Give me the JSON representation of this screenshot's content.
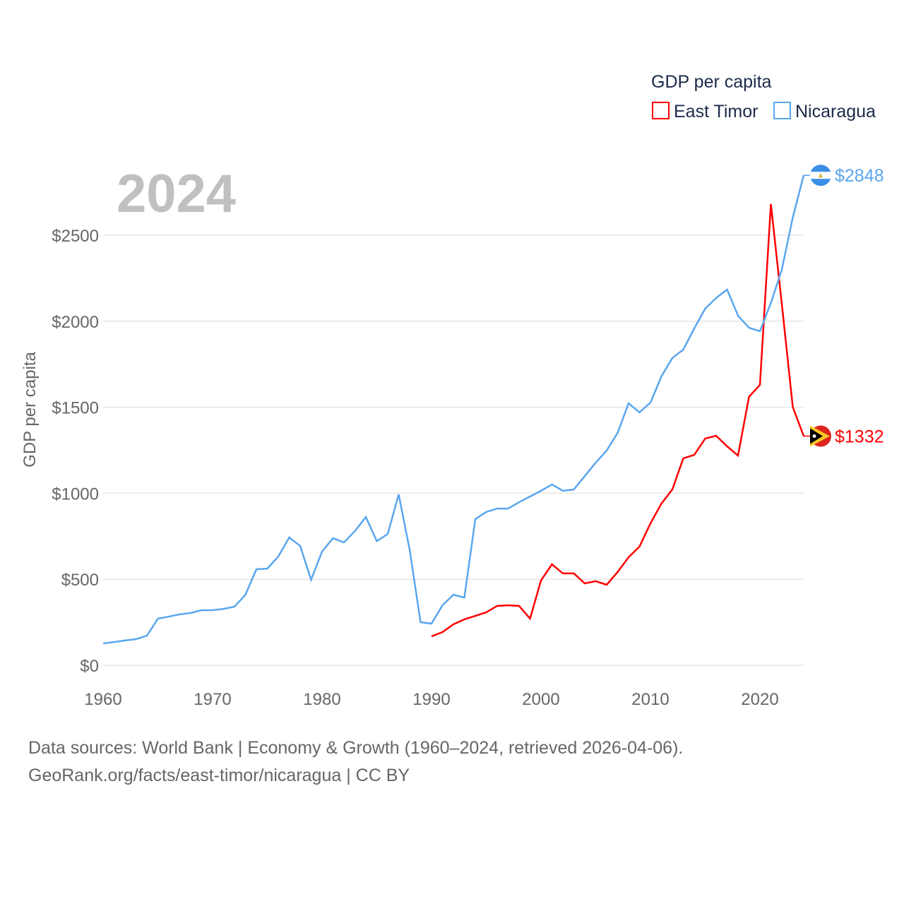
{
  "chart_data": {
    "type": "line",
    "title": "GDP per capita",
    "year_label": "2024",
    "ylabel": "GDP per capita",
    "xlabel": "",
    "xlim": [
      1960,
      2024
    ],
    "ylim": [
      0,
      2850
    ],
    "grid": true,
    "legend_position": "top-right",
    "x_ticks": [
      "1960",
      "1970",
      "1980",
      "1990",
      "2000",
      "2010",
      "2020"
    ],
    "y_ticks": [
      {
        "v": 0,
        "label": "$0"
      },
      {
        "v": 500,
        "label": "$500"
      },
      {
        "v": 1000,
        "label": "$1000"
      },
      {
        "v": 1500,
        "label": "$1500"
      },
      {
        "v": 2000,
        "label": "$2000"
      },
      {
        "v": 2500,
        "label": "$2500"
      }
    ],
    "series": [
      {
        "name": "East Timor",
        "color": "#ff0000",
        "end_label": "$1332",
        "start_year": 1990,
        "values": [
          168,
          193,
          238,
          267,
          287,
          308,
          345,
          349,
          345,
          271,
          493,
          587,
          534,
          534,
          476,
          489,
          468,
          542,
          628,
          690,
          825,
          940,
          1022,
          1203,
          1223,
          1318,
          1334,
          1273,
          1219,
          1560,
          1630,
          2681,
          2100,
          1502,
          1332
        ]
      },
      {
        "name": "Nicaragua",
        "color": "#5aa6ee",
        "end_label": "$2848",
        "start_year": 1960,
        "values": [
          127,
          135,
          144,
          152,
          172,
          271,
          283,
          296,
          304,
          320,
          320,
          328,
          341,
          410,
          558,
          562,
          632,
          743,
          694,
          497,
          661,
          739,
          714,
          780,
          862,
          722,
          763,
          993,
          673,
          250,
          242,
          349,
          410,
          394,
          850,
          891,
          911,
          911,
          948,
          981,
          1014,
          1051,
          1014,
          1022,
          1100,
          1178,
          1248,
          1351,
          1523,
          1470,
          1527,
          1679,
          1786,
          1835,
          1958,
          2073,
          2135,
          2184,
          2032,
          1962,
          1942,
          2106,
          2300,
          2603,
          2848
        ]
      }
    ]
  },
  "footer": {
    "line1": "Data sources: World Bank | Economy & Growth (1960–2024, retrieved 2026-04-06).",
    "line2": "GeoRank.org/facts/east-timor/nicaragua | CC BY"
  }
}
